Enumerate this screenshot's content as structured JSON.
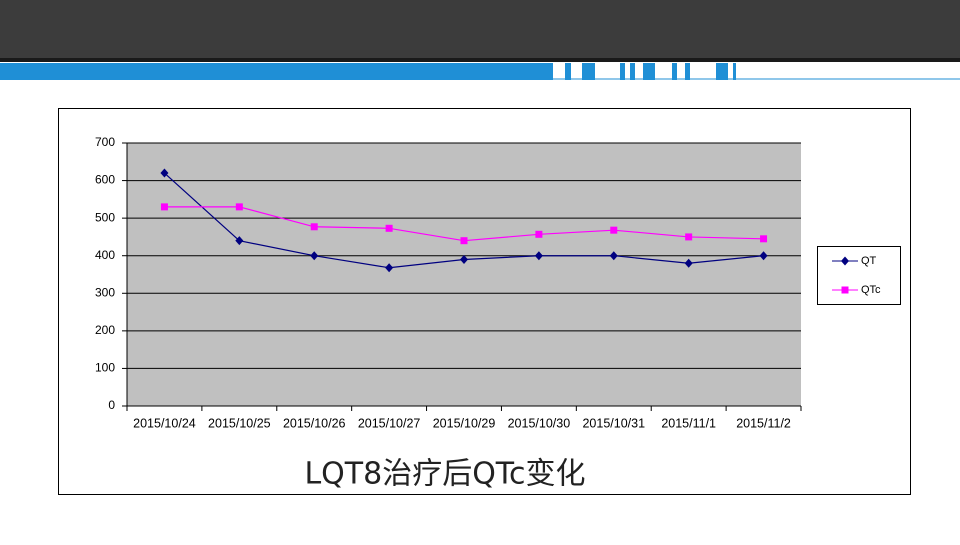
{
  "chart_data": {
    "type": "line",
    "title": "LQT8治疗后QTc变化",
    "categories": [
      "2015/10/24",
      "2015/10/25",
      "2015/10/26",
      "2015/10/27",
      "2015/10/29",
      "2015/10/30",
      "2015/10/31",
      "2015/11/1",
      "2015/11/2"
    ],
    "series": [
      {
        "name": "QT",
        "color": "#000080",
        "marker": "diamond",
        "values": [
          620,
          440,
          400,
          368,
          390,
          400,
          400,
          380,
          400
        ]
      },
      {
        "name": "QTc",
        "color": "#ff00ff",
        "marker": "square",
        "values": [
          530,
          530,
          477,
          473,
          440,
          457,
          468,
          450,
          445
        ]
      }
    ],
    "ylim": [
      0,
      700
    ],
    "yticks": [
      0,
      100,
      200,
      300,
      400,
      500,
      600,
      700
    ],
    "grid": true,
    "legend": "right"
  }
}
